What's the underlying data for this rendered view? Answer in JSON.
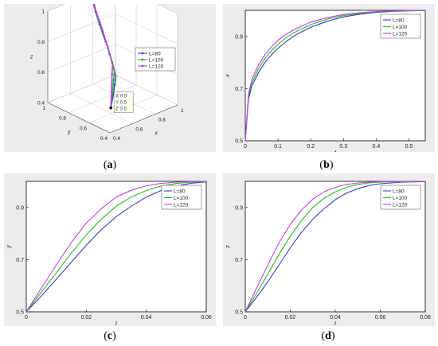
{
  "colors": {
    "L80": "#3b3fbf",
    "L100": "#22bb22",
    "L120": "#c040e0",
    "frame": "#000000",
    "grid": "#d0d0d0"
  },
  "captions": {
    "a": "a",
    "b": "b",
    "c": "c",
    "d": "d"
  },
  "chart_data": [
    {
      "id": "a",
      "type": "line",
      "projection": "3d",
      "xlabel": "x",
      "ylabel": "y",
      "zlabel": "z",
      "xlim": [
        0.4,
        1
      ],
      "ylim": [
        0.4,
        1
      ],
      "zlim": [
        0.4,
        1
      ],
      "x_ticks": [
        "0.4",
        "0.6",
        "0.8",
        "1"
      ],
      "y_ticks": [
        "0.4",
        "0.6",
        "0.8",
        "1"
      ],
      "z_ticks": [
        "0.4",
        "0.6",
        "0.8",
        "1"
      ],
      "legend_position": "top-right",
      "datatip": {
        "x": "X 0.5",
        "y": "Y 0.5",
        "z": "Z 0.5"
      },
      "series": [
        {
          "name": "L=80"
        },
        {
          "name": "L=100"
        },
        {
          "name": "L=120"
        }
      ]
    },
    {
      "id": "b",
      "type": "line",
      "xlabel": "t",
      "ylabel": "x",
      "xlim": [
        0,
        0.55
      ],
      "ylim": [
        0.5,
        1.0
      ],
      "x_ticks": [
        "0",
        "0.1",
        "0.2",
        "0.3",
        "0.4",
        "0.5"
      ],
      "y_ticks": [
        "0.5",
        "0.7",
        "0.9"
      ],
      "legend_position": "top-right",
      "series": [
        {
          "name": "L=80",
          "x": [
            0,
            0.01,
            0.02,
            0.04,
            0.06,
            0.08,
            0.1,
            0.13,
            0.16,
            0.2,
            0.25,
            0.3,
            0.35,
            0.4,
            0.45,
            0.5,
            0.55
          ],
          "y": [
            0.5,
            0.66,
            0.71,
            0.76,
            0.8,
            0.83,
            0.855,
            0.885,
            0.91,
            0.935,
            0.958,
            0.975,
            0.985,
            0.992,
            0.996,
            0.998,
            0.999
          ]
        },
        {
          "name": "L=100",
          "x": [
            0,
            0.01,
            0.02,
            0.04,
            0.06,
            0.08,
            0.1,
            0.13,
            0.16,
            0.2,
            0.25,
            0.3,
            0.35,
            0.4,
            0.45,
            0.5,
            0.55
          ],
          "y": [
            0.5,
            0.67,
            0.72,
            0.775,
            0.815,
            0.845,
            0.87,
            0.9,
            0.922,
            0.945,
            0.966,
            0.98,
            0.988,
            0.994,
            0.997,
            0.999,
            0.999
          ]
        },
        {
          "name": "L=120",
          "x": [
            0,
            0.01,
            0.02,
            0.04,
            0.06,
            0.08,
            0.1,
            0.13,
            0.16,
            0.2,
            0.25,
            0.3,
            0.35,
            0.4,
            0.45,
            0.5,
            0.55
          ],
          "y": [
            0.5,
            0.68,
            0.735,
            0.79,
            0.83,
            0.86,
            0.885,
            0.912,
            0.933,
            0.955,
            0.972,
            0.984,
            0.991,
            0.995,
            0.998,
            0.999,
            1.0
          ]
        }
      ]
    },
    {
      "id": "c",
      "type": "line",
      "xlabel": "t",
      "ylabel": "y",
      "xlim": [
        0,
        0.06
      ],
      "ylim": [
        0.5,
        1.0
      ],
      "x_ticks": [
        "0",
        "0.02",
        "0.04",
        "0.06"
      ],
      "y_ticks": [
        "0.5",
        "0.7",
        "0.9"
      ],
      "legend_position": "top-right",
      "series": [
        {
          "name": "L=80",
          "x": [
            0,
            0.005,
            0.01,
            0.015,
            0.02,
            0.025,
            0.03,
            0.035,
            0.04,
            0.045,
            0.05,
            0.055,
            0.06
          ],
          "y": [
            0.5,
            0.56,
            0.625,
            0.69,
            0.755,
            0.815,
            0.865,
            0.905,
            0.94,
            0.965,
            0.982,
            0.993,
            0.998
          ]
        },
        {
          "name": "L=100",
          "x": [
            0,
            0.005,
            0.01,
            0.015,
            0.02,
            0.025,
            0.03,
            0.035,
            0.04,
            0.045,
            0.05,
            0.055,
            0.06
          ],
          "y": [
            0.5,
            0.575,
            0.65,
            0.725,
            0.795,
            0.855,
            0.905,
            0.94,
            0.965,
            0.982,
            0.992,
            0.997,
            0.999
          ]
        },
        {
          "name": "L=120",
          "x": [
            0,
            0.005,
            0.01,
            0.015,
            0.02,
            0.025,
            0.03,
            0.035,
            0.04,
            0.045,
            0.05,
            0.055,
            0.06
          ],
          "y": [
            0.5,
            0.59,
            0.68,
            0.765,
            0.84,
            0.895,
            0.94,
            0.966,
            0.983,
            0.992,
            0.997,
            0.999,
            1.0
          ]
        }
      ]
    },
    {
      "id": "d",
      "type": "line",
      "xlabel": "t",
      "ylabel": "z",
      "xlim": [
        0,
        0.08
      ],
      "ylim": [
        0.5,
        1.0
      ],
      "x_ticks": [
        "0",
        "0.02",
        "0.04",
        "0.06",
        "0.08"
      ],
      "y_ticks": [
        "0.5",
        "0.7",
        "0.9"
      ],
      "legend_position": "top-right",
      "series": [
        {
          "name": "L=80",
          "x": [
            0,
            0.005,
            0.01,
            0.015,
            0.02,
            0.025,
            0.03,
            0.035,
            0.04,
            0.045,
            0.05,
            0.055,
            0.06,
            0.07,
            0.08
          ],
          "y": [
            0.5,
            0.555,
            0.615,
            0.68,
            0.745,
            0.805,
            0.855,
            0.895,
            0.93,
            0.955,
            0.972,
            0.984,
            0.991,
            0.997,
            0.999
          ]
        },
        {
          "name": "L=100",
          "x": [
            0,
            0.005,
            0.01,
            0.015,
            0.02,
            0.025,
            0.03,
            0.035,
            0.04,
            0.045,
            0.05,
            0.055,
            0.06,
            0.07,
            0.08
          ],
          "y": [
            0.5,
            0.57,
            0.645,
            0.72,
            0.79,
            0.85,
            0.9,
            0.935,
            0.96,
            0.977,
            0.988,
            0.994,
            0.997,
            0.999,
            1.0
          ]
        },
        {
          "name": "L=120",
          "x": [
            0,
            0.005,
            0.01,
            0.015,
            0.02,
            0.025,
            0.03,
            0.035,
            0.04,
            0.045,
            0.05,
            0.055,
            0.06,
            0.07,
            0.08
          ],
          "y": [
            0.5,
            0.59,
            0.68,
            0.765,
            0.835,
            0.89,
            0.932,
            0.96,
            0.977,
            0.988,
            0.994,
            0.997,
            0.999,
            1.0,
            1.0
          ]
        }
      ]
    }
  ]
}
